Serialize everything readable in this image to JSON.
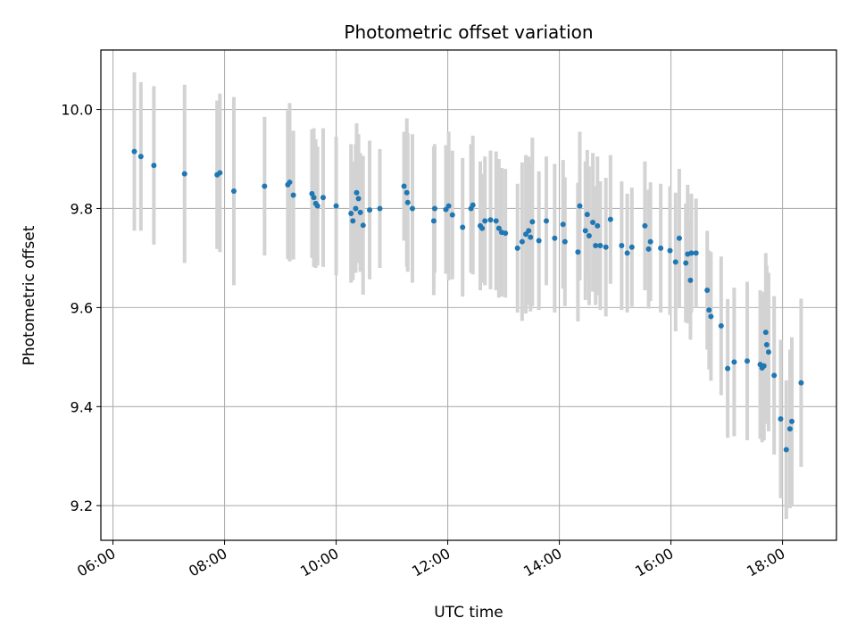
{
  "chart_data": {
    "type": "scatter",
    "title": "Photometric offset variation",
    "xlabel": "UTC time",
    "ylabel": "Photometric offset",
    "x_ticks": [
      "06:00",
      "08:00",
      "10:00",
      "12:00",
      "14:00",
      "16:00",
      "18:00"
    ],
    "y_ticks": [
      "9.2",
      "9.4",
      "9.6",
      "9.8",
      "10.0"
    ],
    "xlim": [
      "05:47",
      "18:58"
    ],
    "ylim": [
      9.13,
      10.12
    ],
    "grid": true,
    "marker_color": "#1f77b4",
    "errorbar_color": "#d3d3d3",
    "points": [
      [
        "06:23",
        9.915,
        0.16
      ],
      [
        "06:30",
        9.905,
        0.15
      ],
      [
        "06:44",
        9.887,
        0.16
      ],
      [
        "07:17",
        9.87,
        0.18
      ],
      [
        "07:52",
        9.868,
        0.15
      ],
      [
        "07:55",
        9.872,
        0.16
      ],
      [
        "08:10",
        9.835,
        0.19
      ],
      [
        "08:43",
        9.845,
        0.14
      ],
      [
        "09:08",
        9.848,
        0.15
      ],
      [
        "09:10",
        9.853,
        0.16
      ],
      [
        "09:14",
        9.827,
        0.13
      ],
      [
        "09:34",
        9.83,
        0.13
      ],
      [
        "09:36",
        9.822,
        0.14
      ],
      [
        "09:38",
        9.81,
        0.13
      ],
      [
        "09:40",
        9.805,
        0.12
      ],
      [
        "09:46",
        9.822,
        0.14
      ],
      [
        "10:00",
        9.805,
        0.14
      ],
      [
        "10:16",
        9.79,
        0.14
      ],
      [
        "10:18",
        9.775,
        0.12
      ],
      [
        "10:21",
        9.8,
        0.13
      ],
      [
        "10:22",
        9.832,
        0.14
      ],
      [
        "10:24",
        9.82,
        0.13
      ],
      [
        "10:26",
        9.792,
        0.12
      ],
      [
        "10:29",
        9.766,
        0.14
      ],
      [
        "10:36",
        9.797,
        0.14
      ],
      [
        "10:47",
        9.8,
        0.12
      ],
      [
        "11:13",
        9.845,
        0.11
      ],
      [
        "11:16",
        9.832,
        0.15
      ],
      [
        "11:17",
        9.812,
        0.14
      ],
      [
        "11:22",
        9.8,
        0.15
      ],
      [
        "11:45",
        9.775,
        0.15
      ],
      [
        "11:46",
        9.8,
        0.13
      ],
      [
        "11:58",
        9.798,
        0.13
      ],
      [
        "12:01",
        9.805,
        0.15
      ],
      [
        "12:05",
        9.787,
        0.13
      ],
      [
        "12:16",
        9.762,
        0.14
      ],
      [
        "12:25",
        9.8,
        0.13
      ],
      [
        "12:27",
        9.807,
        0.14
      ],
      [
        "12:35",
        9.765,
        0.13
      ],
      [
        "12:37",
        9.76,
        0.11
      ],
      [
        "12:40",
        9.775,
        0.13
      ],
      [
        "12:46",
        9.777,
        0.14
      ],
      [
        "12:52",
        9.775,
        0.14
      ],
      [
        "12:55",
        9.76,
        0.14
      ],
      [
        "12:58",
        9.752,
        0.13
      ],
      [
        "13:02",
        9.75,
        0.13
      ],
      [
        "13:15",
        9.72,
        0.13
      ],
      [
        "13:20",
        9.733,
        0.16
      ],
      [
        "13:24",
        9.748,
        0.16
      ],
      [
        "13:27",
        9.755,
        0.15
      ],
      [
        "13:29",
        9.742,
        0.15
      ],
      [
        "13:31",
        9.773,
        0.17
      ],
      [
        "13:38",
        9.735,
        0.14
      ],
      [
        "13:46",
        9.775,
        0.13
      ],
      [
        "13:55",
        9.74,
        0.15
      ],
      [
        "14:04",
        9.768,
        0.13
      ],
      [
        "14:06",
        9.733,
        0.13
      ],
      [
        "14:20",
        9.712,
        0.14
      ],
      [
        "14:22",
        9.805,
        0.15
      ],
      [
        "14:28",
        9.755,
        0.14
      ],
      [
        "14:30",
        9.788,
        0.13
      ],
      [
        "14:32",
        9.745,
        0.14
      ],
      [
        "14:36",
        9.772,
        0.14
      ],
      [
        "14:39",
        9.725,
        0.12
      ],
      [
        "14:41",
        9.765,
        0.14
      ],
      [
        "14:44",
        9.725,
        0.13
      ],
      [
        "14:50",
        9.722,
        0.14
      ],
      [
        "14:55",
        9.778,
        0.13
      ],
      [
        "15:07",
        9.725,
        0.13
      ],
      [
        "15:13",
        9.71,
        0.12
      ],
      [
        "15:18",
        9.722,
        0.12
      ],
      [
        "15:32",
        9.765,
        0.13
      ],
      [
        "15:36",
        9.718,
        0.12
      ],
      [
        "15:38",
        9.733,
        0.12
      ],
      [
        "15:49",
        9.72,
        0.13
      ],
      [
        "15:59",
        9.715,
        0.13
      ],
      [
        "16:05",
        9.692,
        0.14
      ],
      [
        "16:09",
        9.74,
        0.14
      ],
      [
        "16:16",
        9.69,
        0.12
      ],
      [
        "16:18",
        9.708,
        0.14
      ],
      [
        "16:21",
        9.655,
        0.12
      ],
      [
        "16:22",
        9.71,
        0.12
      ],
      [
        "16:27",
        9.71,
        0.11
      ],
      [
        "16:39",
        9.635,
        0.12
      ],
      [
        "16:41",
        9.595,
        0.12
      ],
      [
        "16:43",
        9.582,
        0.13
      ],
      [
        "16:54",
        9.563,
        0.14
      ],
      [
        "17:01",
        9.477,
        0.14
      ],
      [
        "17:08",
        9.49,
        0.15
      ],
      [
        "17:22",
        9.492,
        0.16
      ],
      [
        "17:36",
        9.485,
        0.15
      ],
      [
        "17:38",
        9.478,
        0.15
      ],
      [
        "17:40",
        9.482,
        0.15
      ],
      [
        "17:42",
        9.55,
        0.16
      ],
      [
        "17:43",
        9.525,
        0.16
      ],
      [
        "17:45",
        9.51,
        0.16
      ],
      [
        "17:51",
        9.463,
        0.16
      ],
      [
        "17:58",
        9.375,
        0.16
      ],
      [
        "18:04",
        9.313,
        0.14
      ],
      [
        "18:08",
        9.355,
        0.16
      ],
      [
        "18:10",
        9.37,
        0.17
      ],
      [
        "18:20",
        9.448,
        0.17
      ]
    ]
  }
}
